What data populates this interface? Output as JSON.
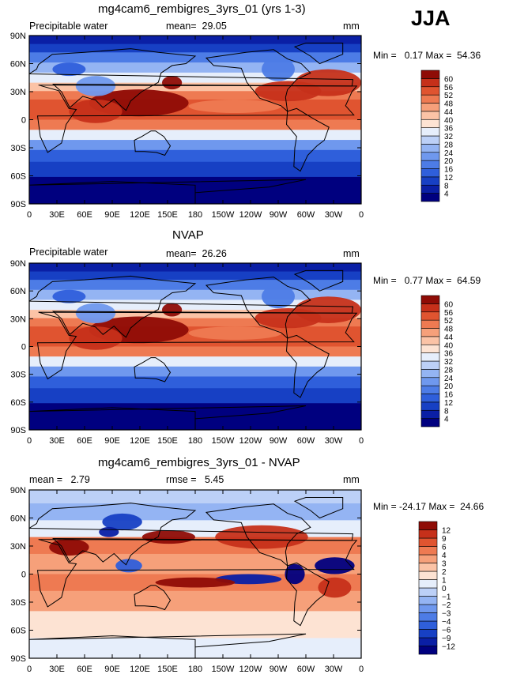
{
  "season": "JJA",
  "panels": [
    {
      "title": "mg4cam6_rembigres_3yrs_01 (yrs 1-3)",
      "left_label": "Precipitable water",
      "stat_label": "mean=",
      "stat_value": "29.05",
      "units": "mm",
      "min_label": "Min =",
      "min_value": "0.17",
      "max_label": "Max =",
      "max_value": "54.36"
    },
    {
      "title": "NVAP",
      "left_label": "Precipitable water",
      "stat_label": "mean=",
      "stat_value": "26.26",
      "units": "mm",
      "min_label": "Min =",
      "min_value": "0.77",
      "max_label": "Max =",
      "max_value": "64.59"
    },
    {
      "title": "mg4cam6_rembigres_3yrs_01 - NVAP",
      "left_label": "mean =",
      "left_value": "2.79",
      "stat_label": "rmse =",
      "stat_value": "5.45",
      "units": "mm",
      "min_label": "Min =",
      "min_value": "-24.17",
      "max_label": "Max =",
      "max_value": "24.66"
    }
  ],
  "chart_data": [
    {
      "type": "heatmap",
      "title": "mg4cam6_rembigres_3yrs_01 (yrs 1-3)",
      "xticks": [
        "0",
        "30E",
        "60E",
        "90E",
        "120E",
        "150E",
        "180",
        "150W",
        "120W",
        "90W",
        "60W",
        "30W",
        "0"
      ],
      "yticks": [
        "90N",
        "60N",
        "30N",
        "0",
        "30S",
        "60S",
        "90S"
      ],
      "colorbar_levels": [
        4,
        8,
        12,
        16,
        20,
        24,
        28,
        32,
        36,
        40,
        44,
        48,
        52,
        56,
        60
      ],
      "colorbar_colors": [
        "#00007f",
        "#0a1fa5",
        "#1740c4",
        "#2f5fdb",
        "#4d7ce6",
        "#6f98ee",
        "#94b4f3",
        "#bcd0f7",
        "#e6eefb",
        "#fde3d3",
        "#fbc3a6",
        "#f6a07a",
        "#ee7a52",
        "#e05430",
        "#c6301a",
        "#8f0c06"
      ]
    },
    {
      "type": "heatmap",
      "title": "NVAP",
      "xticks": [
        "0",
        "30E",
        "60E",
        "90E",
        "120E",
        "150E",
        "180",
        "150W",
        "120W",
        "90W",
        "60W",
        "30W",
        "0"
      ],
      "yticks": [
        "90N",
        "60N",
        "30N",
        "0",
        "30S",
        "60S",
        "90S"
      ],
      "colorbar_levels": [
        4,
        8,
        12,
        16,
        20,
        24,
        28,
        32,
        36,
        40,
        44,
        48,
        52,
        56,
        60
      ],
      "colorbar_colors": [
        "#00007f",
        "#0a1fa5",
        "#1740c4",
        "#2f5fdb",
        "#4d7ce6",
        "#6f98ee",
        "#94b4f3",
        "#bcd0f7",
        "#e6eefb",
        "#fde3d3",
        "#fbc3a6",
        "#f6a07a",
        "#ee7a52",
        "#e05430",
        "#c6301a",
        "#8f0c06"
      ]
    },
    {
      "type": "heatmap",
      "title": "mg4cam6_rembigres_3yrs_01 - NVAP",
      "xticks": [
        "0",
        "30E",
        "60E",
        "90E",
        "120E",
        "150E",
        "180",
        "150W",
        "120W",
        "90W",
        "60W",
        "30W",
        "0"
      ],
      "yticks": [
        "90N",
        "60N",
        "30N",
        "0",
        "30S",
        "60S",
        "90S"
      ],
      "colorbar_levels": [
        -12,
        -9,
        -6,
        -4,
        -3,
        -2,
        -1,
        0,
        1,
        2,
        3,
        4,
        6,
        9,
        12
      ],
      "colorbar_colors": [
        "#00007f",
        "#0a1fa5",
        "#1740c4",
        "#2f5fdb",
        "#4d7ce6",
        "#6f98ee",
        "#94b4f3",
        "#bcd0f7",
        "#e6eefb",
        "#fde3d3",
        "#fbc3a6",
        "#f6a07a",
        "#ee7a52",
        "#e05430",
        "#c6301a",
        "#8f0c06"
      ]
    }
  ]
}
